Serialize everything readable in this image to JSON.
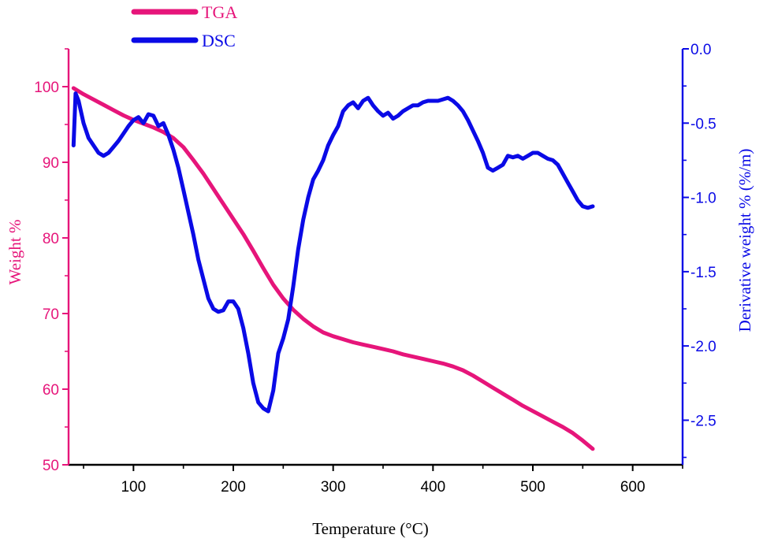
{
  "colors": {
    "tga": "#e6157a",
    "dsc": "#0a0ae6",
    "xaxis": "#000000"
  },
  "chart_data": {
    "type": "line",
    "xlabel": "Temperature (°C)",
    "ylabel_left": "Weight %",
    "ylabel_right": "Derivative weight % (%/m)",
    "xlim": [
      35,
      650
    ],
    "ylim_left": [
      50,
      105
    ],
    "ylim_right": [
      -2.8,
      0.0
    ],
    "xticks": [
      100,
      200,
      300,
      400,
      500,
      600
    ],
    "xtick_labels": [
      "100",
      "200",
      "300",
      "400",
      "500",
      "600"
    ],
    "yticks_left": [
      50,
      60,
      70,
      80,
      90,
      100
    ],
    "ytick_labels_left": [
      "50",
      "60",
      "70",
      "80",
      "90",
      "100"
    ],
    "yticks_right": [
      0.0,
      -0.5,
      -1.0,
      -1.5,
      -2.0,
      -2.5
    ],
    "ytick_labels_right": [
      "0.0",
      "-0.5",
      "-1.0",
      "-1.5",
      "-2.0",
      "-2.5"
    ],
    "legend": [
      {
        "name": "TGA",
        "series": "tga"
      },
      {
        "name": "DSC",
        "series": "dsc"
      }
    ],
    "series": [
      {
        "name": "TGA",
        "key": "tga",
        "axis": "left",
        "points": [
          [
            40,
            99.8
          ],
          [
            50,
            99.0
          ],
          [
            60,
            98.3
          ],
          [
            70,
            97.6
          ],
          [
            80,
            96.9
          ],
          [
            90,
            96.2
          ],
          [
            100,
            95.6
          ],
          [
            110,
            95.1
          ],
          [
            120,
            94.6
          ],
          [
            130,
            94.0
          ],
          [
            140,
            93.2
          ],
          [
            150,
            92.0
          ],
          [
            160,
            90.3
          ],
          [
            170,
            88.5
          ],
          [
            180,
            86.5
          ],
          [
            190,
            84.5
          ],
          [
            200,
            82.5
          ],
          [
            210,
            80.5
          ],
          [
            220,
            78.3
          ],
          [
            230,
            76.0
          ],
          [
            240,
            73.8
          ],
          [
            250,
            72.0
          ],
          [
            260,
            70.5
          ],
          [
            270,
            69.3
          ],
          [
            280,
            68.3
          ],
          [
            290,
            67.5
          ],
          [
            300,
            67.0
          ],
          [
            310,
            66.6
          ],
          [
            320,
            66.2
          ],
          [
            330,
            65.9
          ],
          [
            340,
            65.6
          ],
          [
            350,
            65.3
          ],
          [
            360,
            65.0
          ],
          [
            370,
            64.6
          ],
          [
            380,
            64.3
          ],
          [
            390,
            64.0
          ],
          [
            400,
            63.7
          ],
          [
            410,
            63.4
          ],
          [
            420,
            63.0
          ],
          [
            430,
            62.5
          ],
          [
            440,
            61.8
          ],
          [
            450,
            61.0
          ],
          [
            460,
            60.2
          ],
          [
            470,
            59.4
          ],
          [
            480,
            58.6
          ],
          [
            490,
            57.8
          ],
          [
            500,
            57.1
          ],
          [
            510,
            56.4
          ],
          [
            520,
            55.7
          ],
          [
            530,
            55.0
          ],
          [
            540,
            54.2
          ],
          [
            550,
            53.2
          ],
          [
            560,
            52.1
          ]
        ]
      },
      {
        "name": "DSC",
        "key": "dsc",
        "axis": "right",
        "points": [
          [
            40,
            -0.65
          ],
          [
            42,
            -0.3
          ],
          [
            45,
            -0.35
          ],
          [
            50,
            -0.5
          ],
          [
            55,
            -0.6
          ],
          [
            60,
            -0.65
          ],
          [
            65,
            -0.7
          ],
          [
            70,
            -0.72
          ],
          [
            75,
            -0.7
          ],
          [
            80,
            -0.66
          ],
          [
            85,
            -0.62
          ],
          [
            90,
            -0.57
          ],
          [
            95,
            -0.52
          ],
          [
            100,
            -0.48
          ],
          [
            105,
            -0.46
          ],
          [
            110,
            -0.5
          ],
          [
            115,
            -0.44
          ],
          [
            120,
            -0.45
          ],
          [
            125,
            -0.52
          ],
          [
            130,
            -0.5
          ],
          [
            135,
            -0.58
          ],
          [
            140,
            -0.68
          ],
          [
            145,
            -0.8
          ],
          [
            150,
            -0.95
          ],
          [
            155,
            -1.1
          ],
          [
            160,
            -1.25
          ],
          [
            165,
            -1.42
          ],
          [
            170,
            -1.55
          ],
          [
            175,
            -1.68
          ],
          [
            180,
            -1.75
          ],
          [
            185,
            -1.77
          ],
          [
            190,
            -1.76
          ],
          [
            195,
            -1.7
          ],
          [
            200,
            -1.7
          ],
          [
            205,
            -1.75
          ],
          [
            210,
            -1.88
          ],
          [
            215,
            -2.05
          ],
          [
            220,
            -2.25
          ],
          [
            225,
            -2.38
          ],
          [
            230,
            -2.42
          ],
          [
            235,
            -2.44
          ],
          [
            240,
            -2.3
          ],
          [
            245,
            -2.05
          ],
          [
            250,
            -1.95
          ],
          [
            255,
            -1.82
          ],
          [
            260,
            -1.6
          ],
          [
            265,
            -1.35
          ],
          [
            270,
            -1.15
          ],
          [
            275,
            -1.0
          ],
          [
            280,
            -0.88
          ],
          [
            285,
            -0.82
          ],
          [
            290,
            -0.75
          ],
          [
            295,
            -0.65
          ],
          [
            300,
            -0.58
          ],
          [
            305,
            -0.52
          ],
          [
            310,
            -0.42
          ],
          [
            315,
            -0.38
          ],
          [
            320,
            -0.36
          ],
          [
            325,
            -0.4
          ],
          [
            330,
            -0.35
          ],
          [
            335,
            -0.33
          ],
          [
            340,
            -0.38
          ],
          [
            345,
            -0.42
          ],
          [
            350,
            -0.45
          ],
          [
            355,
            -0.43
          ],
          [
            360,
            -0.47
          ],
          [
            365,
            -0.45
          ],
          [
            370,
            -0.42
          ],
          [
            375,
            -0.4
          ],
          [
            380,
            -0.38
          ],
          [
            385,
            -0.38
          ],
          [
            390,
            -0.36
          ],
          [
            395,
            -0.35
          ],
          [
            400,
            -0.35
          ],
          [
            405,
            -0.35
          ],
          [
            410,
            -0.34
          ],
          [
            415,
            -0.33
          ],
          [
            420,
            -0.35
          ],
          [
            425,
            -0.38
          ],
          [
            430,
            -0.42
          ],
          [
            435,
            -0.48
          ],
          [
            440,
            -0.55
          ],
          [
            445,
            -0.62
          ],
          [
            450,
            -0.7
          ],
          [
            455,
            -0.8
          ],
          [
            460,
            -0.82
          ],
          [
            465,
            -0.8
          ],
          [
            470,
            -0.78
          ],
          [
            475,
            -0.72
          ],
          [
            480,
            -0.73
          ],
          [
            485,
            -0.72
          ],
          [
            490,
            -0.74
          ],
          [
            495,
            -0.72
          ],
          [
            500,
            -0.7
          ],
          [
            505,
            -0.7
          ],
          [
            510,
            -0.72
          ],
          [
            515,
            -0.74
          ],
          [
            520,
            -0.75
          ],
          [
            525,
            -0.78
          ],
          [
            530,
            -0.84
          ],
          [
            535,
            -0.9
          ],
          [
            540,
            -0.96
          ],
          [
            545,
            -1.02
          ],
          [
            550,
            -1.06
          ],
          [
            555,
            -1.07
          ],
          [
            560,
            -1.06
          ]
        ]
      }
    ]
  }
}
